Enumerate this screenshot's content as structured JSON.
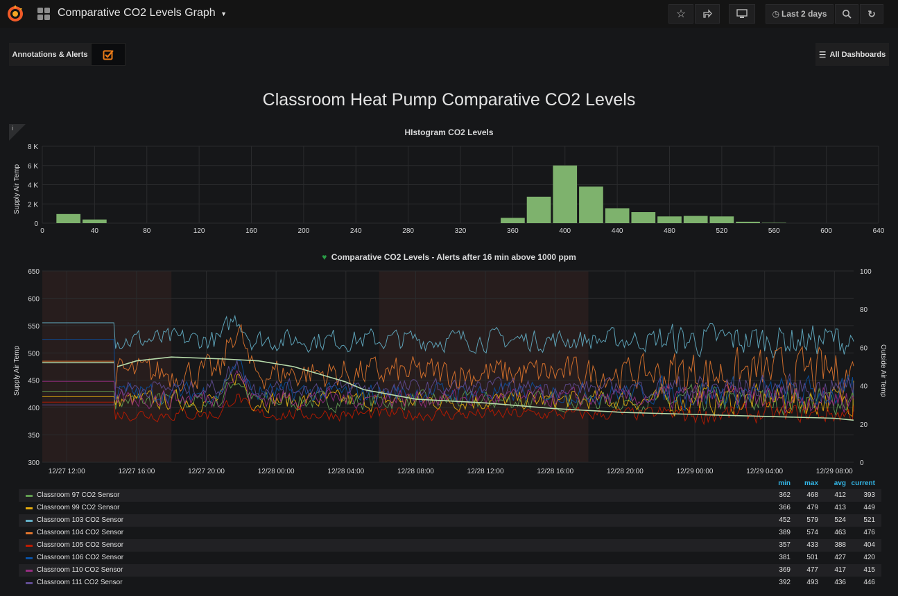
{
  "navbar": {
    "title": "Comparative CO2 Levels Graph",
    "time_range": "Last 2 days"
  },
  "subnav": {
    "annotations_label": "Annotations & Alerts",
    "all_dashboards": "All Dashboards"
  },
  "dashboard_heading": "Classroom Heat Pump Comparative CO2 Levels",
  "info_icon": "i",
  "chart_data": [
    {
      "type": "bar",
      "title": "HIstogram CO2 Levels",
      "ylabel": "Supply Air Temp",
      "xlim": [
        0,
        640
      ],
      "ylim": [
        0,
        8000
      ],
      "x_ticks": [
        "0",
        "40",
        "80",
        "120",
        "160",
        "200",
        "240",
        "280",
        "320",
        "360",
        "400",
        "440",
        "480",
        "520",
        "560",
        "600",
        "640"
      ],
      "y_ticks": [
        "0",
        "2 K",
        "4 K",
        "6 K",
        "8 K"
      ],
      "bar_color": "#7eb26d",
      "bins": [
        {
          "x": 20,
          "value": 950
        },
        {
          "x": 40,
          "value": 380
        },
        {
          "x": 360,
          "value": 550
        },
        {
          "x": 380,
          "value": 2750
        },
        {
          "x": 400,
          "value": 6000
        },
        {
          "x": 420,
          "value": 3800
        },
        {
          "x": 440,
          "value": 1550
        },
        {
          "x": 460,
          "value": 1150
        },
        {
          "x": 480,
          "value": 700
        },
        {
          "x": 500,
          "value": 750
        },
        {
          "x": 520,
          "value": 700
        },
        {
          "x": 540,
          "value": 150
        },
        {
          "x": 560,
          "value": 40
        }
      ],
      "bin_width": 20
    },
    {
      "type": "line",
      "title": "Comparative CO2 Levels - Alerts after 16 min above 1000 ppm",
      "ylabel": "Supply Air Temp",
      "y2label": "Outside Air Temp",
      "ylim": [
        300,
        650
      ],
      "y2lim": [
        0,
        100
      ],
      "y_ticks": [
        "300",
        "350",
        "400",
        "450",
        "500",
        "550",
        "600",
        "650"
      ],
      "y2_ticks": [
        "0",
        "20",
        "40",
        "60",
        "80",
        "100"
      ],
      "x_ticks": [
        "12/27 12:00",
        "12/27 16:00",
        "12/27 20:00",
        "12/28 00:00",
        "12/28 04:00",
        "12/28 08:00",
        "12/28 12:00",
        "12/28 16:00",
        "12/28 20:00",
        "12/29 00:00",
        "12/29 04:00",
        "12/29 08:00"
      ],
      "x_range_hours": [
        -1.4,
        45.1
      ],
      "shaded_ranges_hours": [
        [
          -1.4,
          6.0
        ],
        [
          17.9,
          29.9
        ]
      ],
      "outside_air_temp_points": [
        [
          2.9,
          50
        ],
        [
          4,
          53
        ],
        [
          6,
          55
        ],
        [
          9,
          54
        ],
        [
          11,
          53
        ],
        [
          13,
          50
        ],
        [
          14.5,
          46
        ],
        [
          16,
          42
        ],
        [
          17,
          38
        ],
        [
          20,
          33
        ],
        [
          24,
          31
        ],
        [
          28,
          28
        ],
        [
          32,
          26
        ],
        [
          36,
          25
        ],
        [
          40,
          24
        ],
        [
          44,
          23
        ],
        [
          45.1,
          22
        ]
      ],
      "legend": {
        "headers": [
          "min",
          "max",
          "avg",
          "current"
        ],
        "series": [
          {
            "name": "Classroom 97 CO2 Sensor",
            "color": "#629e51",
            "min": "362",
            "max": "468",
            "avg": "412",
            "current": "393"
          },
          {
            "name": "Classroom 99 CO2 Sensor",
            "color": "#e5ac0e",
            "min": "366",
            "max": "479",
            "avg": "413",
            "current": "449"
          },
          {
            "name": "Classroom 103 CO2 Sensor",
            "color": "#64b0c8",
            "min": "452",
            "max": "579",
            "avg": "524",
            "current": "521"
          },
          {
            "name": "Classroom 104 CO2 Sensor",
            "color": "#e0752d",
            "min": "389",
            "max": "574",
            "avg": "463",
            "current": "476"
          },
          {
            "name": "Classroom 105 CO2 Sensor",
            "color": "#bf1b00",
            "min": "357",
            "max": "433",
            "avg": "388",
            "current": "404"
          },
          {
            "name": "Classroom 106 CO2 Sensor",
            "color": "#0a50a1",
            "min": "381",
            "max": "501",
            "avg": "427",
            "current": "420"
          },
          {
            "name": "Classroom 110 CO2 Sensor",
            "color": "#962d82",
            "min": "369",
            "max": "477",
            "avg": "417",
            "current": "415"
          },
          {
            "name": "Classroom 111 CO2 Sensor",
            "color": "#614d93",
            "min": "392",
            "max": "493",
            "avg": "436",
            "current": "446"
          }
        ]
      }
    }
  ]
}
